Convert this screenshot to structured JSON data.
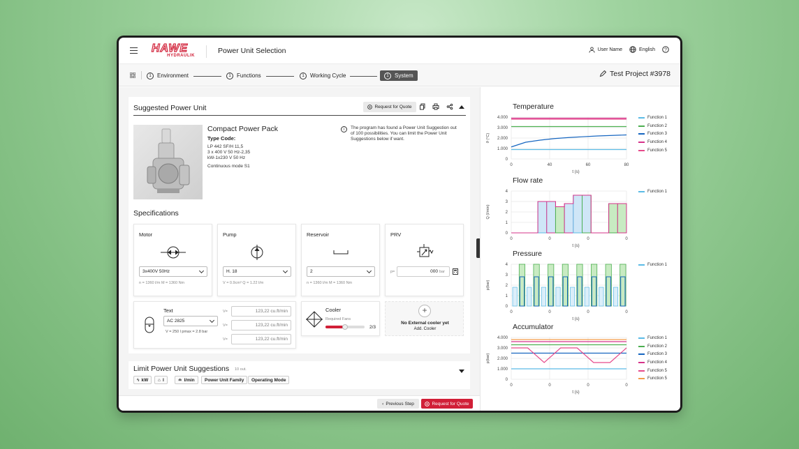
{
  "header": {
    "brand_top": "HAWE",
    "brand_bottom": "HYDRAULIK",
    "title": "Power Unit Selection",
    "user": "User Name",
    "language": "English"
  },
  "steps": [
    {
      "num": "1",
      "label": "Environment"
    },
    {
      "num": "1",
      "label": "Functions"
    },
    {
      "num": "1",
      "label": "Working Cycle"
    },
    {
      "num": "1",
      "label": "System"
    }
  ],
  "project": "Test Project #3978",
  "suggested": {
    "title": "Suggested Power Unit",
    "rfq": "Request for Quote",
    "product_name": "Compact Power Pack",
    "type_code_label": "Type Code:",
    "code_lines": [
      "LP 442 SF/H 11,5",
      "3 x 400 V 50 Hz-2,35",
      "kW-1x230 V 50 Hz"
    ],
    "mode": "Continuous mode S1",
    "info": "The program has found a Power Unit Suggestion out of 100 possibilities. You can limit the Power Unit Suggestions below if want."
  },
  "specs": {
    "title": "Specifications",
    "motor": {
      "title": "Motor",
      "value": "3x400V 50Hz",
      "sub": "n = 1360 l/m    M = 1360 Nm"
    },
    "pump": {
      "title": "Pump",
      "value": "H. 18",
      "sub": "V = 0.9cm³    Q = 1.22 l/m"
    },
    "reservoir": {
      "title": "Reservoir",
      "value": "2",
      "sub": "n = 1360 l/m    M = 1360 Nm"
    },
    "prv": {
      "title": "PRV",
      "prefix": "p=",
      "value": "000",
      "unit": "bar"
    },
    "text": {
      "title": "Text",
      "value": "AC 2825",
      "sub": "V = 250 l    pmax = 2.8 bar",
      "vlabel": "V=",
      "inputs": [
        "123,22 cu.ft/min",
        "123,22 cu.ft/min",
        "123,22 cu.ft/min"
      ]
    },
    "cooler": {
      "title": "Cooler",
      "sub": "Required Fans",
      "count": "2/3",
      "progress": 0.5
    },
    "nocooler": {
      "title": "No External cooler yet",
      "add": "Add. Cooler"
    }
  },
  "limit": {
    "title": "Limit Power Unit Suggestions",
    "count": "10 out.",
    "chips": [
      "kW",
      "l",
      "l/min",
      "Power Unit Family",
      "Operating Mode"
    ]
  },
  "footer": {
    "prev": "Previous Step",
    "rfq": "Request for Quote"
  },
  "charts": {
    "temperature": {
      "title": "Temperature",
      "ylabel": "ϑ (°C)",
      "xlabel": "t (s)",
      "yticks": [
        "4.000",
        "3.000",
        "2.000",
        "1.000",
        "0"
      ],
      "xticks": [
        "0",
        "40",
        "60",
        "80"
      ],
      "legend": [
        "Function 1",
        "Function 2",
        "Function 3",
        "Function 4",
        "Function 5"
      ]
    },
    "flow": {
      "title": "Flow rate",
      "ylabel": "Q (l/min)",
      "xlabel": "t (s)",
      "yticks": [
        "4",
        "3",
        "2",
        "1",
        "0"
      ],
      "xticks": [
        "0",
        "0",
        "0",
        "0"
      ],
      "legend": [
        "Function 1"
      ]
    },
    "pressure": {
      "title": "Pressure",
      "ylabel": "p(bar)",
      "xlabel": "t (s)",
      "yticks": [
        "4",
        "3",
        "2",
        "1",
        "0"
      ],
      "xticks": [
        "0",
        "0",
        "0",
        "0"
      ],
      "legend": [
        "Function 1"
      ]
    },
    "accumulator": {
      "title": "Accumulator",
      "ylabel": "p(bar)",
      "xlabel": "t (s)",
      "yticks": [
        "4.000",
        "3.000",
        "2.000",
        "1.000",
        "0"
      ],
      "xticks": [
        "0",
        "0",
        "0",
        "0"
      ],
      "legend": [
        "Function 1",
        "Function 2",
        "Function 3",
        "Function 4",
        "Function 5",
        "Function 5"
      ]
    }
  },
  "chart_data": [
    {
      "type": "line",
      "title": "Temperature",
      "xlabel": "t (s)",
      "ylabel": "ϑ (°C)",
      "x": [
        0,
        10,
        20,
        30,
        40,
        50,
        60,
        70,
        80
      ],
      "xlim": [
        0,
        80
      ],
      "ylim": [
        0,
        4000
      ],
      "series": [
        {
          "name": "Function 1",
          "color": "#5bbbe6",
          "values": [
            900,
            900,
            900,
            900,
            900,
            900,
            900,
            900,
            900
          ]
        },
        {
          "name": "Function 2",
          "color": "#4caf50",
          "values": [
            3100,
            3100,
            3100,
            3100,
            3100,
            3100,
            3100,
            3100,
            3100
          ]
        },
        {
          "name": "Function 3",
          "color": "#1565c0",
          "values": [
            1150,
            1600,
            1800,
            1950,
            2050,
            2130,
            2200,
            2250,
            2300
          ]
        },
        {
          "name": "Function 4",
          "color": "#d6338a",
          "values": [
            3900,
            3900,
            3900,
            3900,
            3900,
            3900,
            3900,
            3900,
            3900
          ]
        },
        {
          "name": "Function 5",
          "color": "#e64a8b",
          "values": [
            3800,
            3800,
            3800,
            3800,
            3800,
            3800,
            3800,
            3800,
            3800
          ]
        }
      ]
    },
    {
      "type": "area",
      "title": "Flow rate",
      "xlabel": "t (s)",
      "ylabel": "Q (l/min)",
      "ylim": [
        0,
        4
      ],
      "series": [
        {
          "name": "Function 1",
          "color": "#5bbbe6",
          "values": [
            0,
            0,
            0,
            3,
            3,
            2.5,
            2.8,
            3.6,
            3.6,
            0,
            0,
            2.8,
            2.8
          ]
        }
      ]
    },
    {
      "type": "area",
      "title": "Pressure",
      "xlabel": "t (s)",
      "ylabel": "p(bar)",
      "ylim": [
        0,
        4
      ],
      "series": [
        {
          "name": "Function 1",
          "color": "#5bbbe6",
          "values": [
            0,
            4,
            0,
            4,
            0,
            4,
            0,
            4,
            0,
            4,
            0,
            4,
            0,
            4,
            0,
            4
          ]
        }
      ]
    },
    {
      "type": "line",
      "title": "Accumulator",
      "xlabel": "t (s)",
      "ylabel": "p(bar)",
      "ylim": [
        0,
        4000
      ],
      "series": [
        {
          "name": "Function 1",
          "color": "#5bbbe6",
          "values": [
            1000,
            1000,
            1000,
            1000,
            1000,
            1000,
            1000,
            1000
          ]
        },
        {
          "name": "Function 2",
          "color": "#4caf50",
          "values": [
            3300,
            3300,
            3300,
            3300,
            3300,
            3300,
            3300,
            3300
          ]
        },
        {
          "name": "Function 3",
          "color": "#1565c0",
          "values": [
            2500,
            2500,
            2500,
            2500,
            2500,
            2500,
            2500,
            2500
          ]
        },
        {
          "name": "Function 4",
          "color": "#d6338a",
          "values": [
            3600,
            3600,
            3600,
            3600,
            3600,
            3600,
            3600,
            3600
          ]
        },
        {
          "name": "Function 5",
          "color": "#e64a8b",
          "values": [
            3000,
            3000,
            1600,
            3000,
            3000,
            1600,
            1600,
            3000
          ]
        },
        {
          "name": "Function 5",
          "color": "#f39c4a",
          "values": [
            3800,
            3800,
            3800,
            3800,
            3800,
            3800,
            3800,
            3800
          ]
        }
      ]
    }
  ]
}
